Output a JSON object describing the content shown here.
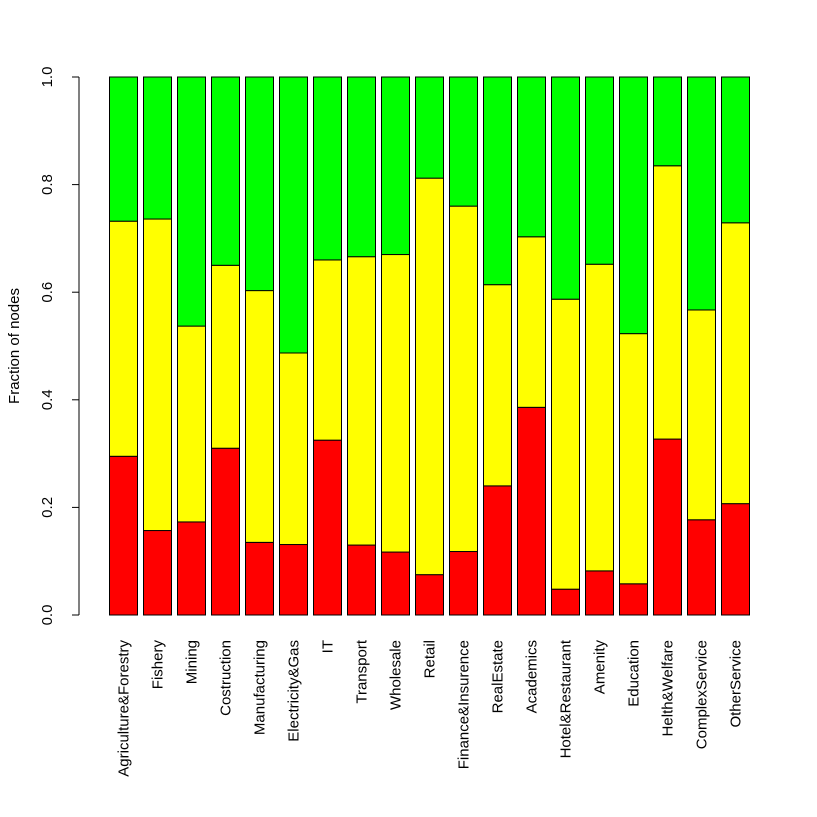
{
  "chart_data": {
    "type": "bar",
    "stacked": true,
    "title": "",
    "xlabel": "",
    "ylabel": "Fraction of nodes",
    "ylim": [
      0,
      1
    ],
    "yticks": [
      "0.0",
      "0.2",
      "0.4",
      "0.6",
      "0.8",
      "1.0"
    ],
    "categories": [
      "Agriculture&Forestry",
      "Fishery",
      "Mining",
      "Costruction",
      "Manufacturing",
      "Electricity&Gas",
      "IT",
      "Transport",
      "Wholesale",
      "Retail",
      "Finance&Insurence",
      "RealEstate",
      "Academics",
      "Hotel&Restaurant",
      "Amenity",
      "Education",
      "Helth&Welfare",
      "ComplexService",
      "OtherService"
    ],
    "series": [
      {
        "name": "red",
        "color": "#ff0000",
        "values": [
          0.295,
          0.157,
          0.173,
          0.31,
          0.135,
          0.131,
          0.325,
          0.13,
          0.117,
          0.075,
          0.118,
          0.24,
          0.386,
          0.048,
          0.082,
          0.058,
          0.327,
          0.177,
          0.207
        ]
      },
      {
        "name": "yellow",
        "color": "#ffff00",
        "values": [
          0.437,
          0.579,
          0.364,
          0.34,
          0.468,
          0.356,
          0.335,
          0.536,
          0.553,
          0.737,
          0.642,
          0.374,
          0.317,
          0.539,
          0.57,
          0.465,
          0.508,
          0.39,
          0.522
        ]
      },
      {
        "name": "green",
        "color": "#00ff00",
        "values": [
          0.268,
          0.264,
          0.463,
          0.35,
          0.397,
          0.513,
          0.34,
          0.334,
          0.33,
          0.188,
          0.24,
          0.386,
          0.297,
          0.413,
          0.348,
          0.477,
          0.165,
          0.433,
          0.271
        ]
      }
    ]
  }
}
